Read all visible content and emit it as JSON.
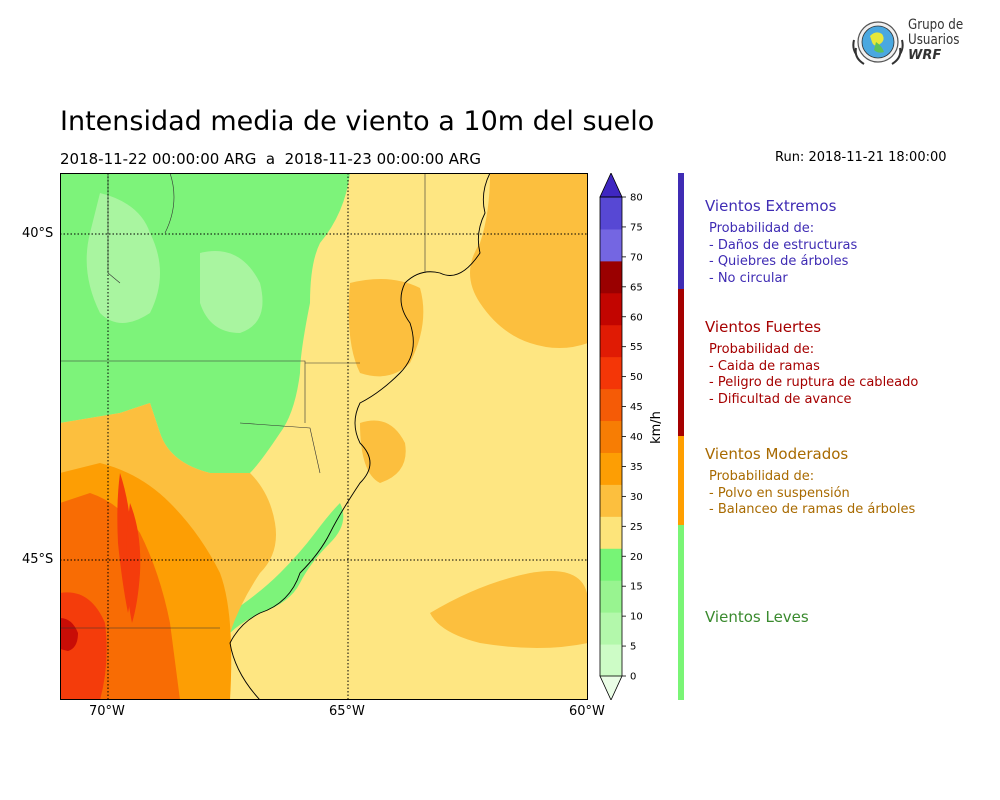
{
  "header": {
    "title": "Intensidad media de viento a 10m del suelo",
    "subtitle_left": "2018-11-22 00:00:00 ARG  a  2018-11-23 00:00:00 ARG",
    "subtitle_right": "Run: 2018-11-21 18:00:00"
  },
  "logo": {
    "line1": "Grupo de",
    "line2": "Usuarios",
    "line3": "WRF"
  },
  "map": {
    "lat_ticks": [
      "40°S",
      "45°S"
    ],
    "lon_ticks": [
      "70°W",
      "65°W",
      "60°W"
    ],
    "colors": {
      "ocean": "#fee682",
      "land_moderate": "#fcbf3e",
      "light_green": "#7df37a",
      "pale_green": "#a9f5a0",
      "orange": "#fd9e04",
      "dark_orange": "#f86c04",
      "red": "#f43c0b",
      "deep_red": "#c80d06"
    }
  },
  "colorbar": {
    "unit": "km/h",
    "ticks": [
      "0",
      "5",
      "10",
      "15",
      "20",
      "25",
      "30",
      "35",
      "40",
      "45",
      "50",
      "55",
      "60",
      "65",
      "70",
      "75",
      "80"
    ],
    "colors": [
      "#eafde6",
      "#cdfcc6",
      "#b3f8ab",
      "#98f490",
      "#77f476",
      "#fde47a",
      "#fcbf3e",
      "#fd9e04",
      "#f77d04",
      "#f55b06",
      "#f43607",
      "#e01b04",
      "#c20500",
      "#9a0000",
      "#7466e2",
      "#5748d4",
      "#3f27c1"
    ]
  },
  "categories": [
    {
      "title": "Vientos Extremos",
      "color": "#3f2cb4",
      "intro": "Probabilidad de:",
      "items": [
        "- Daños de estructuras",
        "- Quiebres de árboles",
        "- No circular"
      ]
    },
    {
      "title": "Vientos Fuertes",
      "color": "#a50000",
      "intro": "Probabilidad de:",
      "items": [
        "- Caida de ramas",
        "- Peligro de ruptura de cableado",
        "- Dificultad de avance"
      ]
    },
    {
      "title": "Vientos Moderados",
      "color": "#a86a00",
      "bar_color": "#ff9f00",
      "intro": "Probabilidad de:",
      "items": [
        "- Polvo en suspensión",
        "- Balanceo de ramas de árboles"
      ]
    },
    {
      "title": "Vientos Leves",
      "color": "#3a8a2e",
      "bar_color": "#7af576"
    }
  ]
}
